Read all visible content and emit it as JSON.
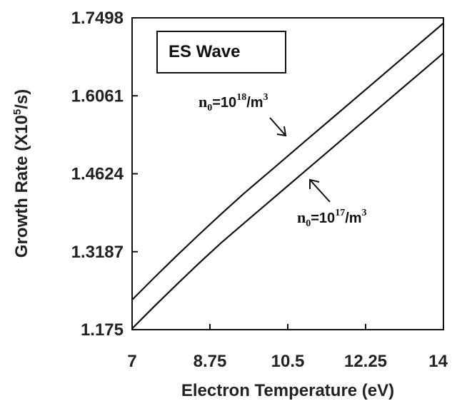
{
  "chart_data": {
    "type": "line",
    "xlabel": "Electron Temperature (eV)",
    "ylabel_main": "Growth Rate (X10",
    "ylabel_exp": "5",
    "ylabel_unit": "/s)",
    "xlim": [
      7,
      14
    ],
    "ylim": [
      1.175,
      1.7498
    ],
    "xticks": [
      "7",
      "8.75",
      "10.5",
      "12.25",
      "14"
    ],
    "yticks": [
      "1.175",
      "1.3187",
      "1.4624",
      "1.6061",
      "1.7498"
    ],
    "legend_box": "ES Wave",
    "grid": false,
    "series": [
      {
        "label_parts": {
          "n": "n",
          "sub": "0",
          "eq": "=10",
          "exp": "18",
          "unit": "/m",
          "unit_exp": "3"
        },
        "x": [
          7,
          7.5,
          8,
          8.5,
          9,
          9.5,
          10,
          10.5,
          11,
          11.5,
          12,
          12.5,
          13,
          13.5,
          14
        ],
        "y": [
          1.23,
          1.271,
          1.311,
          1.35,
          1.388,
          1.425,
          1.46,
          1.495,
          1.53,
          1.565,
          1.6,
          1.635,
          1.67,
          1.705,
          1.74
        ]
      },
      {
        "label_parts": {
          "n": "n",
          "sub": "0",
          "eq": "=10",
          "exp": "17",
          "unit": "/m",
          "unit_exp": "3"
        },
        "x": [
          7,
          7.5,
          8,
          8.5,
          9,
          9.5,
          10,
          10.5,
          11,
          11.5,
          12,
          12.5,
          13,
          13.5,
          14
        ],
        "y": [
          1.177,
          1.218,
          1.258,
          1.297,
          1.335,
          1.37,
          1.405,
          1.44,
          1.475,
          1.51,
          1.545,
          1.58,
          1.615,
          1.65,
          1.685
        ]
      }
    ]
  }
}
